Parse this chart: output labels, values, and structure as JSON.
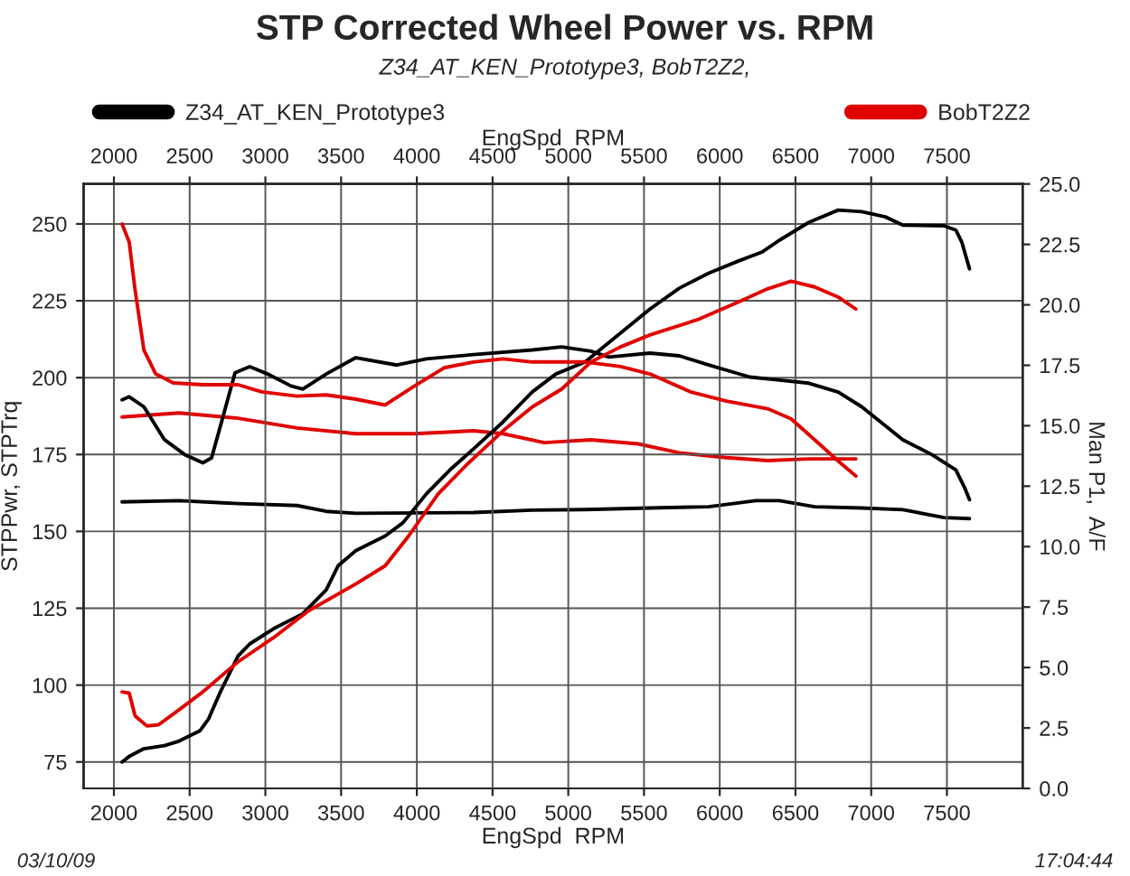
{
  "chart_data": {
    "type": "line",
    "title": "STP Corrected Wheel Power vs. RPM",
    "subtitle": "Z34_AT_KEN_Prototype3, BobT2Z2,",
    "xlabel": "EngSpd  RPM",
    "x2label": "EngSpd  RPM",
    "ylabel": "STPPwr, STPTrq",
    "y2label": "Man P1,  A/F",
    "xlim": [
      1800,
      8000
    ],
    "xticks": [
      2000,
      2500,
      3000,
      3500,
      4000,
      4500,
      5000,
      5500,
      6000,
      6500,
      7000,
      7500
    ],
    "x2lim": [
      1800,
      8000
    ],
    "x2ticks": [
      2000,
      2500,
      3000,
      3500,
      4000,
      4500,
      5000,
      5500,
      6000,
      6500,
      7000,
      7500
    ],
    "ylim": [
      66.4,
      263
    ],
    "yticks": [
      75,
      100,
      125,
      150,
      175,
      200,
      225,
      250
    ],
    "y2lim": [
      0,
      25
    ],
    "y2ticks": [
      {
        "value": 0,
        "label": "0.0"
      },
      {
        "value": 2.5,
        "label": "2.5"
      },
      {
        "value": 5,
        "label": "5.0"
      },
      {
        "value": 7.5,
        "label": "7.5"
      },
      {
        "value": 10,
        "label": "10.0"
      },
      {
        "value": 12.5,
        "label": "12.5"
      },
      {
        "value": 15,
        "label": "15.0"
      },
      {
        "value": 17.5,
        "label": "17.5"
      },
      {
        "value": 20,
        "label": "20.0"
      },
      {
        "value": 22.5,
        "label": "22.5"
      },
      {
        "value": 25,
        "label": "25.0"
      }
    ],
    "grid": true,
    "legend": "top",
    "marker": "none",
    "line_style": "solid",
    "annotations": [
      "03/10/09",
      "17:04:44"
    ],
    "series": [
      {
        "name": "Z34_AT_KEN_Prototype3",
        "color": "#000000",
        "x": [
          2054,
          2101,
          2198,
          2334,
          2431,
          2567,
          2625,
          2703,
          2820,
          2897,
          3053,
          3247,
          3402,
          3480,
          3597,
          3791,
          3908,
          4063,
          4219,
          4374,
          4569,
          4763,
          4918,
          5112,
          5345,
          5539,
          5733,
          5927,
          6122,
          6277,
          6394,
          6588,
          6782,
          6938,
          7093,
          7209,
          7481,
          7559,
          7598,
          7649
        ],
        "values": [
          75,
          76.8,
          79.3,
          80.3,
          81.8,
          85.1,
          89,
          97.8,
          109.5,
          113.4,
          118.3,
          123.2,
          131,
          138.8,
          143.7,
          148.5,
          152.8,
          162.2,
          170,
          176.8,
          185.6,
          195.4,
          201.2,
          205.1,
          214.5,
          222.3,
          229.1,
          234,
          237.9,
          240.8,
          244.7,
          250.5,
          254.5,
          254,
          252.3,
          249.6,
          249.4,
          248,
          244.1,
          235.4
        ]
      },
      {
        "color": "#000000",
        "x": [
          2054,
          2101,
          2198,
          2334,
          2470,
          2587,
          2645,
          2722,
          2800,
          2897,
          3014,
          3169,
          3247,
          3402,
          3597,
          3869,
          4063,
          4374,
          4763,
          4956,
          5150,
          5267,
          5539,
          5733,
          5927,
          6199,
          6394,
          6588,
          6782,
          6938,
          7209,
          7403,
          7559,
          7617,
          7649
        ],
        "values": [
          192.8,
          193.8,
          190.5,
          179.8,
          174.9,
          172.3,
          173.9,
          187.6,
          201.6,
          203.6,
          201.2,
          197.3,
          196.3,
          201.2,
          206.5,
          204.1,
          206.1,
          207.5,
          209,
          210,
          208.6,
          206.7,
          208,
          207.1,
          204.1,
          200.2,
          199.2,
          198.2,
          195.3,
          190.5,
          179.8,
          174.9,
          170,
          164.2,
          160.3
        ]
      },
      {
        "color": "#000000",
        "axis": "y2",
        "x": [
          2054,
          2431,
          2820,
          3208,
          3402,
          3597,
          4374,
          4763,
          5112,
          5539,
          5927,
          6238,
          6394,
          6627,
          6938,
          7209,
          7481,
          7649
        ],
        "values": [
          11.85,
          11.9,
          11.78,
          11.7,
          11.46,
          11.38,
          11.41,
          11.51,
          11.53,
          11.6,
          11.65,
          11.9,
          11.9,
          11.65,
          11.6,
          11.53,
          11.2,
          11.16
        ]
      },
      {
        "name": "BobT2Z2",
        "color": "#e00000",
        "x": [
          2054,
          2101,
          2140,
          2218,
          2295,
          2431,
          2587,
          2820,
          3053,
          3286,
          3597,
          3791,
          3946,
          4141,
          4336,
          4569,
          4763,
          4957,
          5150,
          5345,
          5539,
          5850,
          6122,
          6316,
          6471,
          6627,
          6782,
          6899
        ],
        "values": [
          97.8,
          97.4,
          90,
          86.7,
          87.1,
          92,
          97.8,
          107.6,
          115.4,
          124.2,
          132.9,
          138.8,
          148.5,
          162.2,
          172,
          182.7,
          190.5,
          196.3,
          205.1,
          210,
          213.9,
          218.8,
          224.6,
          228.9,
          231.4,
          229.5,
          226.2,
          222.3
        ]
      },
      {
        "color": "#e00000",
        "x": [
          2054,
          2101,
          2140,
          2198,
          2276,
          2392,
          2587,
          2820,
          2975,
          3208,
          3402,
          3597,
          3791,
          3985,
          4180,
          4374,
          4569,
          4763,
          5112,
          5345,
          5539,
          5811,
          6044,
          6316,
          6471,
          6627,
          6782,
          6899
        ],
        "values": [
          250,
          244.1,
          228.5,
          209,
          201.2,
          198.3,
          197.7,
          197.7,
          195.4,
          194,
          194.4,
          193,
          191.1,
          197.3,
          203.2,
          205.1,
          206.1,
          205.1,
          205.1,
          203.6,
          201.2,
          195.3,
          192.4,
          189.9,
          186.6,
          179.8,
          172.9,
          168
        ]
      },
      {
        "color": "#e00000",
        "axis": "y2",
        "x": [
          2054,
          2431,
          2820,
          3208,
          3597,
          3985,
          4374,
          4569,
          4841,
          5150,
          5461,
          5733,
          6044,
          6316,
          6588,
          6899
        ],
        "values": [
          15.36,
          15.53,
          15.31,
          14.91,
          14.67,
          14.67,
          14.79,
          14.67,
          14.3,
          14.42,
          14.25,
          13.88,
          13.68,
          13.56,
          13.63,
          13.63
        ]
      }
    ]
  }
}
